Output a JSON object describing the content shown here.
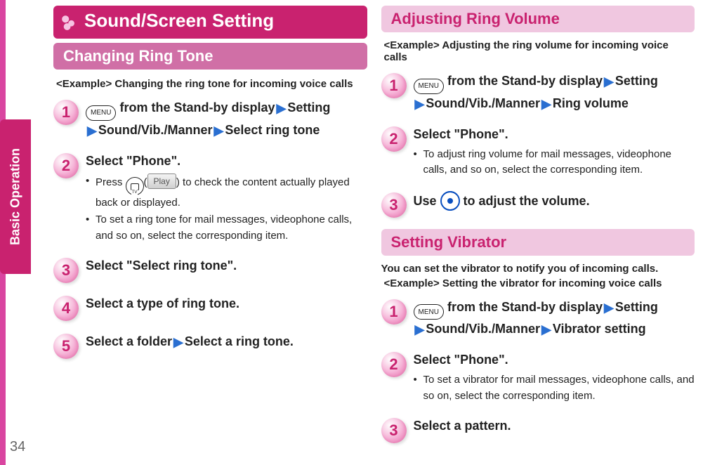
{
  "pageNumber": "34",
  "sideTab": "Basic Operation",
  "exampleLabel": "<Example> ",
  "icons": {
    "menu": "MENU",
    "play": "Play"
  },
  "colors": {
    "brand": "#c9226f",
    "sectionDark": "#d06fa6",
    "sectionLightBg": "#f0c7e0",
    "sectionLightText": "#c9226f",
    "stepBubble": "#f4a8d1",
    "arrow": "#2a6fd1",
    "pageText": "#222222",
    "pageNumber": "#666666",
    "edge": "#d945a0"
  },
  "typography": {
    "chapter_pt": 26,
    "section_pt": 22,
    "body_pt": 18,
    "sub_pt": 15
  },
  "left": {
    "chapter": "Sound/Screen Setting",
    "section": "Changing Ring Tone",
    "example": "Changing the ring tone for incoming voice calls",
    "steps": [
      {
        "n": "1",
        "a": " from the Stand-by display",
        "b": "Setting",
        "c": "Sound/Vib./Manner",
        "d": "Select ring tone"
      },
      {
        "n": "2",
        "a": "Select \"Phone\".",
        "sub1a": "Press ",
        "sub1b": " to check the content actually played back or displayed.",
        "sub2": "To set a ring tone for mail messages, videophone calls, and so on, select the corresponding item."
      },
      {
        "n": "3",
        "a": "Select \"Select ring tone\"."
      },
      {
        "n": "4",
        "a": "Select a type of ring tone."
      },
      {
        "n": "5",
        "a": "Select a folder",
        "b": "Select a ring tone."
      }
    ]
  },
  "right": {
    "sectionA": {
      "title": "Adjusting Ring Volume",
      "example": "Adjusting the ring volume for incoming voice calls",
      "steps": [
        {
          "n": "1",
          "a": " from the Stand-by display",
          "b": "Setting",
          "c": "Sound/Vib./Manner",
          "d": "Ring volume"
        },
        {
          "n": "2",
          "a": "Select \"Phone\".",
          "sub1": "To adjust ring volume for mail messages, videophone calls, and so on, select the corresponding item."
        },
        {
          "n": "3",
          "a": "Use ",
          "b": " to adjust the volume."
        }
      ]
    },
    "sectionB": {
      "title": "Setting Vibrator",
      "intro": "You can set the vibrator to notify you of incoming calls.",
      "example": "Setting the vibrator for incoming voice calls",
      "steps": [
        {
          "n": "1",
          "a": " from the Stand-by display",
          "b": "Setting",
          "c": "Sound/Vib./Manner",
          "d": "Vibrator setting"
        },
        {
          "n": "2",
          "a": "Select \"Phone\".",
          "sub1": "To set a vibrator for mail messages, videophone calls, and so on, select the corresponding item."
        },
        {
          "n": "3",
          "a": "Select a pattern."
        }
      ]
    }
  }
}
